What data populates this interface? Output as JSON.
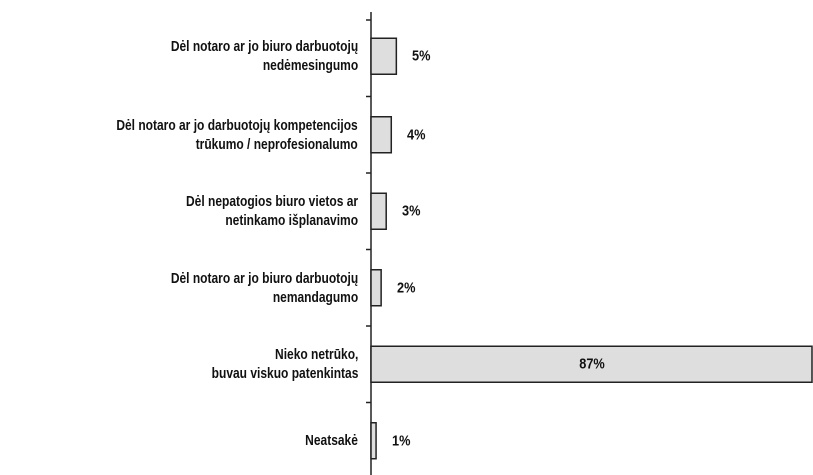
{
  "chart_data": {
    "type": "bar",
    "orientation": "horizontal",
    "categories": [
      "Dėl notaro ar jo biuro darbuotojų\nnedėmesingumo",
      "Dėl notaro ar jo darbuotojų kompetencijos\ntrūkumo / neprofesionalumo",
      "Dėl nepatogios biuro vietos ar\nnetinkamo išplanavimo",
      "Dėl notaro ar jo biuro darbuotojų\nnemandagumo",
      "Nieko netrūko,\nbuvau viskuo patenkintas",
      "Neatsakė"
    ],
    "values": [
      5,
      4,
      3,
      2,
      87,
      1
    ],
    "value_labels": [
      "5%",
      "4%",
      "3%",
      "2%",
      "87%",
      "1%"
    ],
    "color": "#dedede"
  }
}
